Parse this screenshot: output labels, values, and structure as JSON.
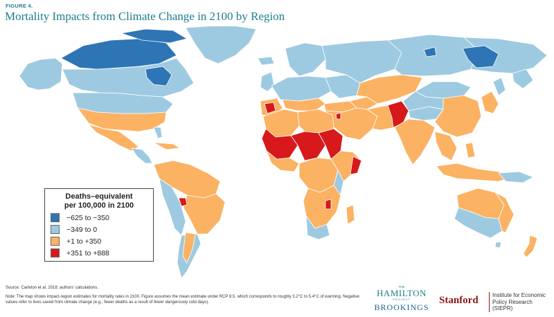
{
  "header": {
    "figure_label": "FIGURE 4.",
    "title": "Mortality Impacts from Climate Change in 2100 by Region"
  },
  "legend": {
    "title_line1": "Deaths–equivalent",
    "title_line2": "per 100,000 in 2100",
    "items": [
      {
        "label": "−625 to −350",
        "color": "#2e75b6"
      },
      {
        "label": "−349 to 0",
        "color": "#9ecae1"
      },
      {
        "label": "+1 to +350",
        "color": "#fbb263"
      },
      {
        "label": "+351 to +888",
        "color": "#d7191c"
      }
    ]
  },
  "footer": {
    "source": "Source: Carleton et al. 2018; authors' calculations.",
    "note": "Note: The map shows impact-region estimates for mortality rates in 2100. Figure assumes the mean estimate under RCP 8.5, which corresponds to roughly 3.2°C to 5.4°C of warming. Negative values refer to lives saved from climate change (e.g., fewer deaths as a result of fewer dangerously cold days)."
  },
  "logos": {
    "hamilton_the": "THE",
    "hamilton_main": "HAMILTON",
    "hamilton_project": "PROJECT",
    "brookings": "BROOKINGS",
    "stanford": "Stanford",
    "siepr_line1": "Institute for Economic",
    "siepr_line2": "Policy Research (SIEPR)"
  },
  "map": {
    "colors": {
      "dark_blue": "#2e75b6",
      "light_blue": "#9ecae1",
      "orange": "#fbb263",
      "red": "#d7191c",
      "border": "#ffffff"
    }
  }
}
